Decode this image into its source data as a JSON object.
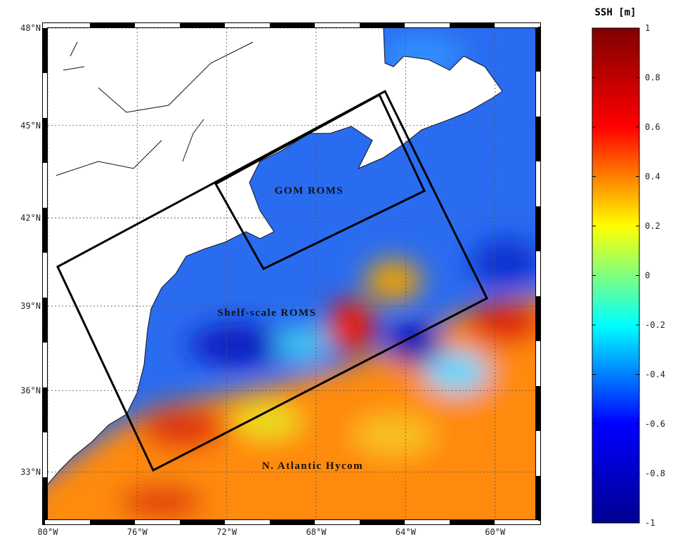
{
  "map": {
    "xlim": [
      -80,
      -58.2
    ],
    "ylim": [
      31.2,
      48
    ],
    "projection": "mercator",
    "grid": true,
    "xticks": [
      {
        "value": -80,
        "label": "80°W"
      },
      {
        "value": -76,
        "label": "76°W"
      },
      {
        "value": -72,
        "label": "72°W"
      },
      {
        "value": -68,
        "label": "68°W"
      },
      {
        "value": -64,
        "label": "64°W"
      },
      {
        "value": -60,
        "label": "60°W"
      }
    ],
    "yticks": [
      {
        "value": 33,
        "label": "33°N"
      },
      {
        "value": 36,
        "label": "36°N"
      },
      {
        "value": 39,
        "label": "39°N"
      },
      {
        "value": 42,
        "label": "42°N"
      },
      {
        "value": 45,
        "label": "45°N"
      },
      {
        "value": 48,
        "label": "48°N"
      }
    ],
    "labels": [
      "GOM ROMS",
      "Shelf-scale ROMS",
      "N. Atlantic Hycom"
    ]
  },
  "colorbar": {
    "title": "SSH [m]",
    "lim": [
      -1,
      1
    ],
    "ticks": [
      1,
      0.8,
      0.6,
      0.4,
      0.2,
      0,
      -0.2,
      -0.4,
      -0.6,
      -0.8,
      -1
    ],
    "colors": [
      "#00008f",
      "#0000ff",
      "#00ffff",
      "#ffff00",
      "#ff0000",
      "#800000"
    ]
  }
}
